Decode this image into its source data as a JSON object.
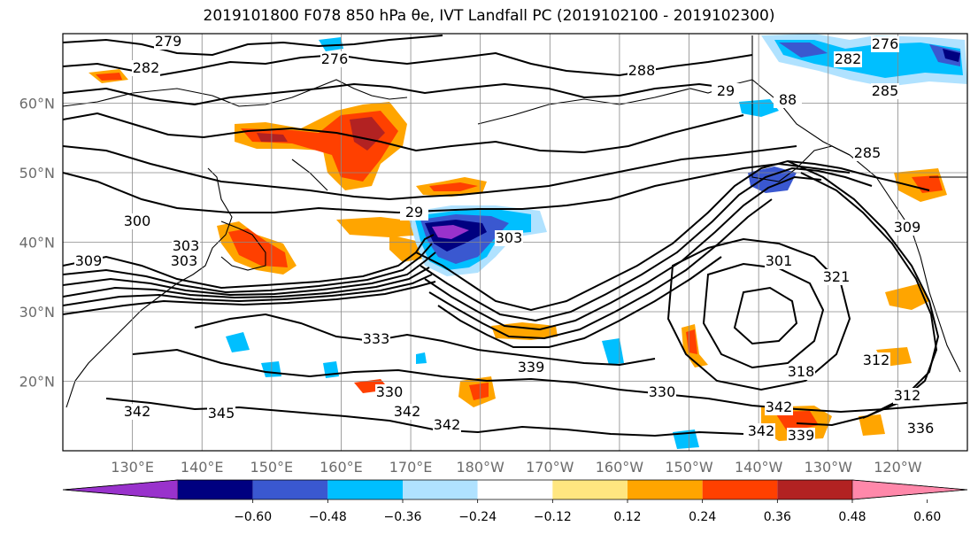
{
  "title": "2019101800 F078 850 hPa θe, IVT Landfall PC (2019102100 - 2019102300)",
  "map": {
    "lat_ticks": [
      {
        "label": "60°N",
        "lat": 60
      },
      {
        "label": "50°N",
        "lat": 50
      },
      {
        "label": "40°N",
        "lat": 40
      },
      {
        "label": "30°N",
        "lat": 30
      },
      {
        "label": "20°N",
        "lat": 20
      }
    ],
    "lon_ticks": [
      {
        "label": "130°E",
        "lon": 130
      },
      {
        "label": "140°E",
        "lon": 140
      },
      {
        "label": "150°E",
        "lon": 150
      },
      {
        "label": "160°E",
        "lon": 160
      },
      {
        "label": "170°E",
        "lon": 170
      },
      {
        "label": "180°W",
        "lon": 180
      },
      {
        "label": "170°W",
        "lon": 190
      },
      {
        "label": "160°W",
        "lon": 200
      },
      {
        "label": "150°W",
        "lon": 210
      },
      {
        "label": "140°W",
        "lon": 220
      },
      {
        "label": "130°W",
        "lon": 230
      },
      {
        "label": "120°W",
        "lon": 240
      }
    ],
    "extent": {
      "lon_min": 120,
      "lon_max": 250,
      "lat_min": 10,
      "lat_max": 70
    },
    "contour_labels": [
      "279",
      "282",
      "276",
      "288",
      "29",
      "88",
      "285",
      "276",
      "282",
      "303",
      "29",
      "300",
      "309",
      "303",
      "303",
      "321",
      "333",
      "339",
      "342",
      "345",
      "342",
      "342",
      "330",
      "330",
      "342",
      "339",
      "336",
      "318",
      "312",
      "312",
      "342",
      "285",
      "309",
      "301"
    ]
  },
  "colorbar": {
    "colors": [
      "#9932cc",
      "#000080",
      "#3a58d0",
      "#00bfff",
      "#b0e2ff",
      "#ffffff",
      "#ffe680",
      "#ffa500",
      "#ff4000",
      "#b22222",
      "#ff88aa"
    ],
    "ticks": [
      "−0.60",
      "−0.48",
      "−0.36",
      "−0.24",
      "−0.12",
      "0.12",
      "0.24",
      "0.36",
      "0.48",
      "0.60"
    ]
  }
}
